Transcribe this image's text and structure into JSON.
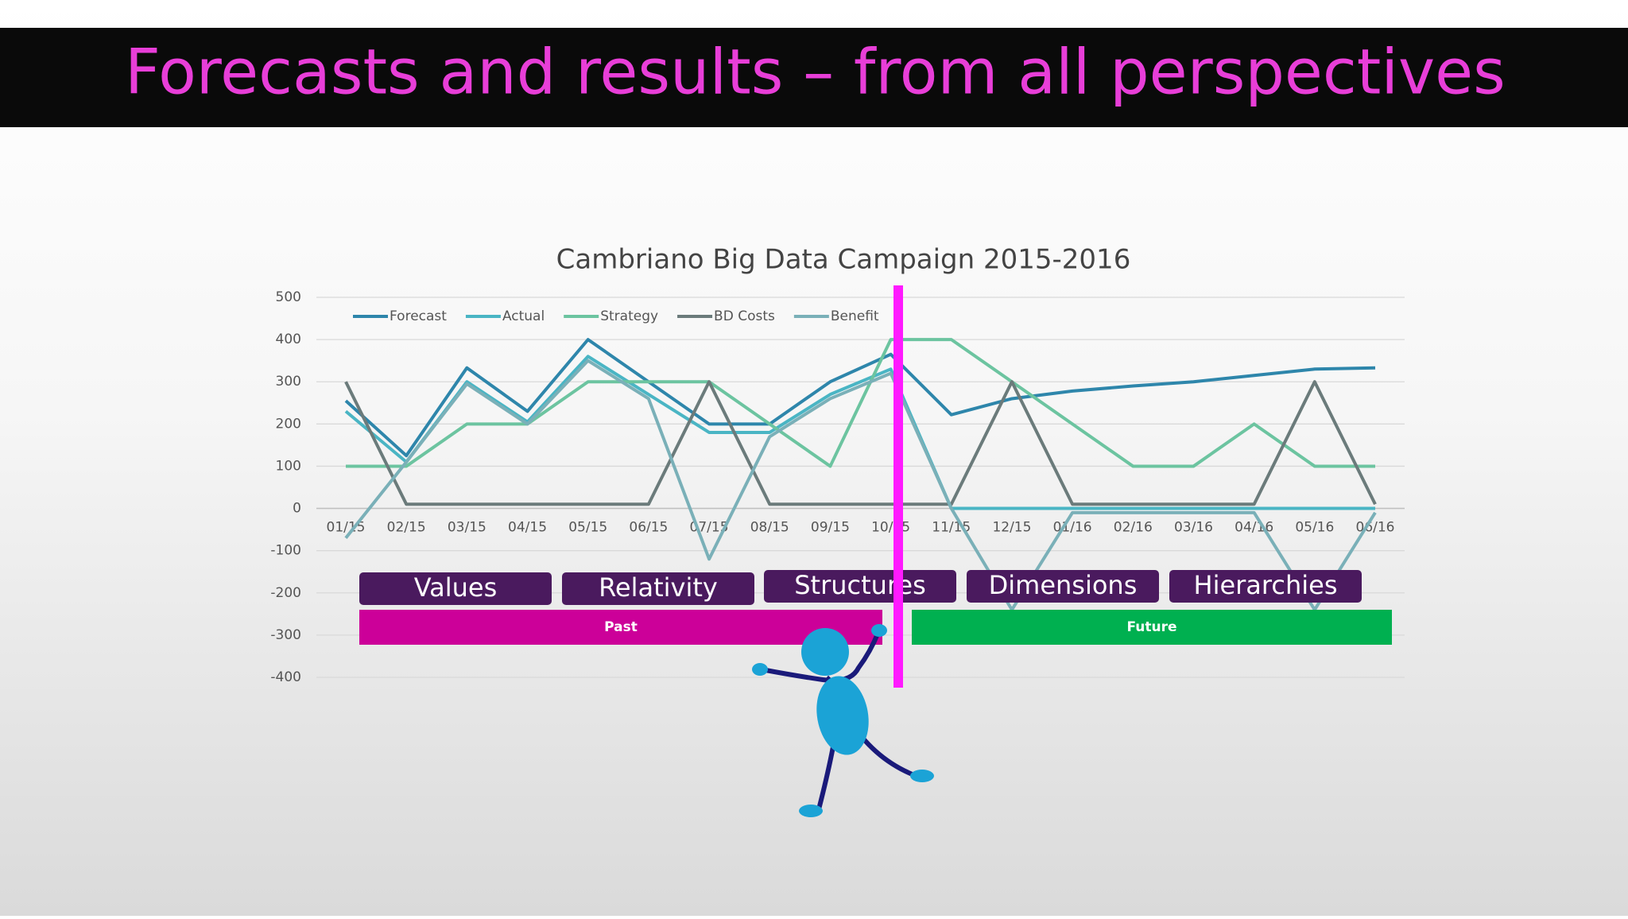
{
  "slide": {
    "title": "Forecasts and results – from all perspectives"
  },
  "chart_data": {
    "type": "line",
    "title": "Cambriano Big Data Campaign 2015-2016",
    "categories": [
      "01/15",
      "02/15",
      "03/15",
      "04/15",
      "05/15",
      "06/15",
      "07/15",
      "08/15",
      "09/15",
      "10/15",
      "11/15",
      "12/15",
      "01/16",
      "02/16",
      "03/16",
      "04/16",
      "05/16",
      "06/16"
    ],
    "series": [
      {
        "name": "Forecast",
        "color": "#2e86ab",
        "values": [
          255,
          125,
          333,
          230,
          400,
          300,
          200,
          200,
          300,
          365,
          222,
          260,
          278,
          290,
          300,
          315,
          330,
          333
        ]
      },
      {
        "name": "Actual",
        "color": "#4ab5c4",
        "values": [
          230,
          110,
          300,
          205,
          360,
          270,
          180,
          180,
          270,
          330,
          0,
          0,
          0,
          0,
          0,
          0,
          0,
          0
        ]
      },
      {
        "name": "Strategy",
        "color": "#6cc4a0",
        "values": [
          100,
          100,
          200,
          200,
          300,
          300,
          300,
          200,
          100,
          400,
          400,
          300,
          200,
          100,
          100,
          200,
          100,
          100
        ]
      },
      {
        "name": "BD Costs",
        "color": "#6b7b7b",
        "values": [
          300,
          10,
          10,
          10,
          10,
          10,
          300,
          10,
          10,
          10,
          10,
          300,
          10,
          10,
          10,
          10,
          300,
          10
        ]
      },
      {
        "name": "Benefit",
        "color": "#7ab0b8",
        "values": [
          -70,
          110,
          295,
          200,
          350,
          260,
          -120,
          170,
          260,
          320,
          0,
          -240,
          -10,
          -10,
          -10,
          -10,
          -240,
          -10
        ]
      }
    ],
    "ylim": [
      -400,
      500
    ],
    "yticks": [
      -400,
      -300,
      -200,
      -100,
      0,
      100,
      200,
      300,
      400,
      500
    ],
    "grid": true,
    "legend": "top-left"
  },
  "perspectives": [
    "Values",
    "Relativity",
    "Structures",
    "Dimensions",
    "Hierarchies"
  ],
  "timeline": [
    "Past",
    "Future"
  ]
}
